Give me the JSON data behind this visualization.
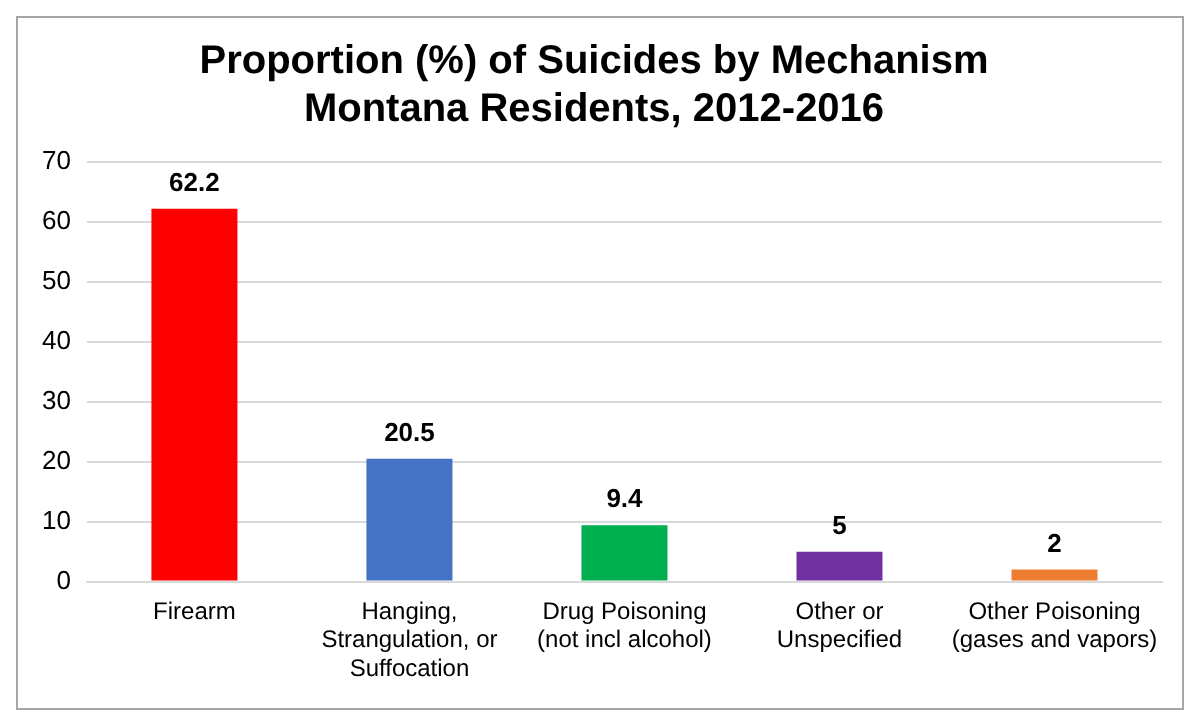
{
  "chart_data": {
    "type": "bar",
    "title": "Proportion (%) of Suicides by Mechanism\nMontana Residents, 2012-2016",
    "categories": [
      "Firearm",
      "Hanging, Strangulation, or Suffocation",
      "Drug Poisoning (not incl alcohol)",
      "Other or Unspecified",
      "Other Poisoning (gases and vapors)"
    ],
    "values": [
      62.2,
      20.5,
      9.4,
      5,
      2
    ],
    "colors": [
      "#ff0000",
      "#4472c4",
      "#00b050",
      "#7030a0",
      "#ed7d31"
    ],
    "ylim": [
      0,
      70
    ],
    "yticks": [
      0,
      10,
      20,
      30,
      40,
      50,
      60,
      70
    ],
    "grid": "y",
    "data_labels": true,
    "legend": false
  }
}
